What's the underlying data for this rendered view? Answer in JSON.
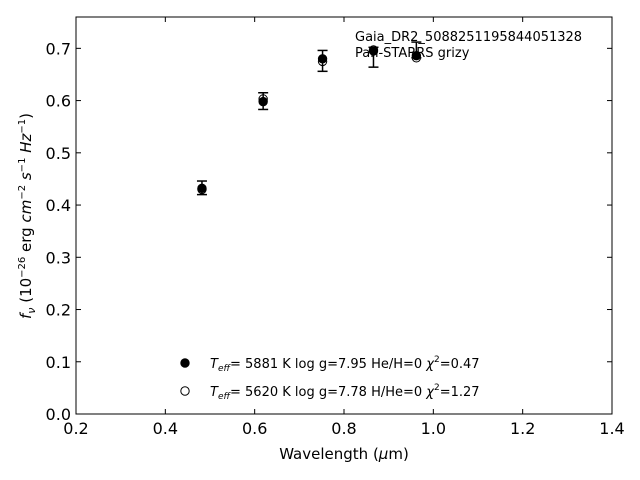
{
  "chart_data": {
    "type": "scatter",
    "xlabel": "Wavelength (μm)",
    "ylabel": "f_ν (10^−26 erg cm^−2 s^−1 Hz^−1)",
    "xlim": [
      0.2,
      1.4
    ],
    "ylim": [
      0.0,
      0.76
    ],
    "x_ticks": [
      0.2,
      0.4,
      0.6,
      0.8,
      1.0,
      1.2,
      1.4
    ],
    "x_tick_labels": [
      "0.2",
      "0.4",
      "0.6",
      "0.8",
      "1.0",
      "1.2",
      "1.4"
    ],
    "y_ticks": [
      0.0,
      0.1,
      0.2,
      0.3,
      0.4,
      0.5,
      0.6,
      0.7
    ],
    "y_tick_labels": [
      "0.0",
      "0.1",
      "0.2",
      "0.3",
      "0.4",
      "0.5",
      "0.6",
      "0.7"
    ],
    "annotation": [
      "Gaia_DR2_5088251195844051328",
      "Pan-STARRS grizy"
    ],
    "legend_placement": "bottom-center",
    "grid": false,
    "series": [
      {
        "name": "T_eff= 5881 K log g=7.95 He/H=0 χ²=0.47",
        "marker": "filled-circle",
        "x": [
          0.482,
          0.619,
          0.752,
          0.866,
          0.962
        ],
        "y": [
          0.432,
          0.598,
          0.68,
          0.695,
          0.686
        ]
      },
      {
        "name": "T_eff= 5620 K log g=7.78 H/He=0 χ²=1.27",
        "marker": "open-circle",
        "x": [
          0.482,
          0.619,
          0.752,
          0.866,
          0.962
        ],
        "y": [
          0.43,
          0.603,
          0.675,
          0.697,
          0.682
        ]
      }
    ],
    "observed": {
      "x": [
        0.482,
        0.619,
        0.752,
        0.866,
        0.962
      ],
      "y": [
        0.433,
        0.599,
        0.676,
        0.683,
        0.697
      ],
      "yerr": [
        0.013,
        0.016,
        0.02,
        0.019,
        0.015
      ]
    },
    "legend": [
      {
        "marker": "filled-circle",
        "teff_value": "5881 K",
        "logg": "log g=7.95",
        "comp": "He/H=0",
        "chi2_value": "=0.47"
      },
      {
        "marker": "open-circle",
        "teff_value": "5620 K",
        "logg": "log g=7.78",
        "comp": "H/He=0",
        "chi2_value": "=1.27"
      }
    ]
  }
}
